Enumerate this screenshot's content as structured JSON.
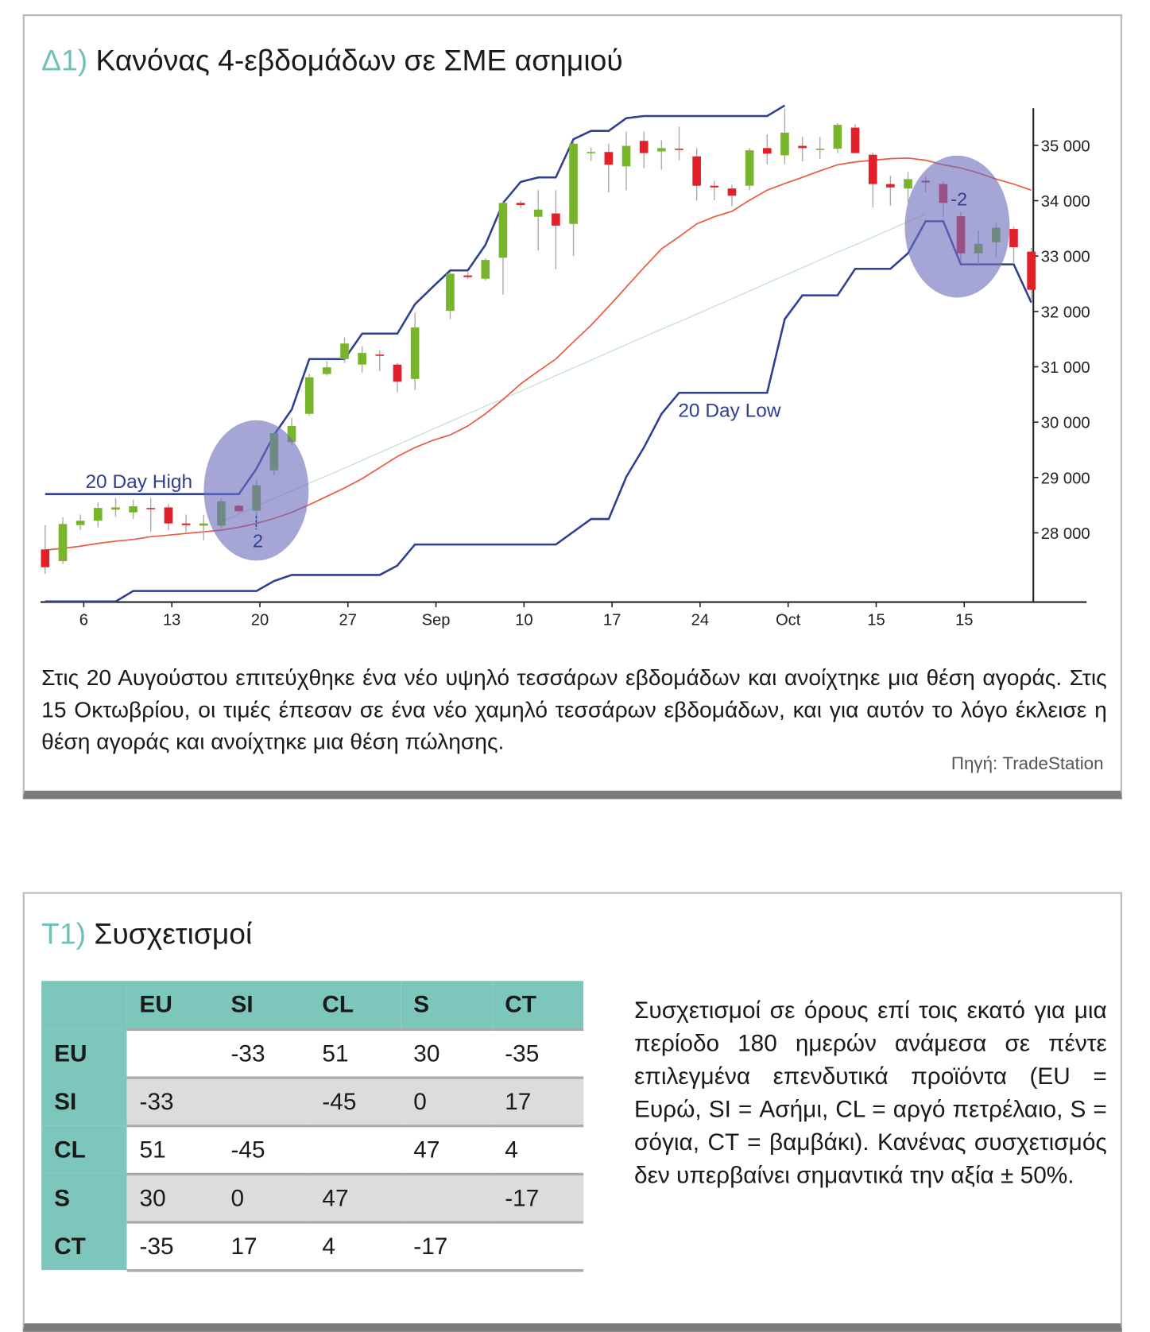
{
  "chart_data": {
    "type": "candlestick",
    "title_prefix": "Δ1)",
    "title": "Κανόνας 4-εβδομάδων σε ΣΜΕ ασημιού",
    "categories": [
      null,
      null,
      "6",
      null,
      null,
      null,
      null,
      "13",
      null,
      null,
      null,
      null,
      "20",
      null,
      null,
      null,
      null,
      "27",
      null,
      null,
      null,
      null,
      "Sep",
      null,
      null,
      null,
      null,
      "10",
      null,
      null,
      null,
      null,
      "17",
      null,
      null,
      null,
      null,
      "24",
      null,
      null,
      null,
      null,
      "Oct",
      null,
      null,
      null,
      null,
      "15",
      null,
      null,
      null,
      null,
      "15",
      null,
      null,
      null,
      null
    ],
    "open": [
      27700,
      27490,
      28140,
      28220,
      28420,
      28370,
      28450,
      28460,
      28170,
      28130,
      28130,
      28490,
      28400,
      29130,
      29640,
      30150,
      30870,
      31140,
      31040,
      31220,
      31040,
      30780,
      null,
      32010,
      32650,
      32590,
      32970,
      33960,
      33710,
      33770,
      33580,
      34860,
      34880,
      34620,
      35080,
      34890,
      34940,
      34800,
      34270,
      34220,
      34270,
      34950,
      34820,
      34990,
      34920,
      34940,
      35320,
      34830,
      34300,
      34220,
      34360,
      34300,
      33720,
      33050,
      33250,
      33490,
      33080
    ],
    "high": [
      28140,
      28280,
      28330,
      28550,
      28630,
      28600,
      28630,
      28520,
      28330,
      28330,
      28630,
      28510,
      28960,
      29820,
      30080,
      30870,
      31100,
      31530,
      31370,
      31300,
      31070,
      31980,
      null,
      32710,
      32710,
      32960,
      34000,
      34000,
      34190,
      34190,
      35080,
      34960,
      35030,
      35250,
      35250,
      35090,
      35340,
      34950,
      34360,
      34290,
      34950,
      35200,
      35660,
      35150,
      35150,
      35400,
      35380,
      34870,
      34450,
      34520,
      34460,
      34340,
      33800,
      33460,
      33600,
      33530,
      33150
    ],
    "low": [
      27260,
      27440,
      28050,
      28100,
      28290,
      28250,
      28020,
      28050,
      28020,
      27870,
      28080,
      28360,
      28170,
      29040,
      29580,
      30120,
      30840,
      31070,
      30890,
      30920,
      30540,
      30580,
      null,
      31860,
      32590,
      32560,
      32300,
      33870,
      33100,
      32760,
      33000,
      34720,
      34150,
      34190,
      34590,
      34560,
      34730,
      34000,
      34010,
      33900,
      34190,
      34660,
      34660,
      34710,
      34750,
      34860,
      34860,
      33880,
      33910,
      33970,
      34150,
      33710,
      32900,
      32850,
      32980,
      32860,
      32200
    ],
    "close": [
      27380,
      28160,
      28220,
      28450,
      28460,
      28480,
      28430,
      28170,
      28140,
      28170,
      28570,
      28390,
      28860,
      29800,
      29930,
      30810,
      30990,
      31420,
      31250,
      31210,
      30730,
      31710,
      null,
      32680,
      32620,
      32930,
      33960,
      33920,
      33840,
      33550,
      35030,
      34880,
      34650,
      34990,
      34860,
      34950,
      34920,
      34270,
      34240,
      34090,
      34910,
      34850,
      35230,
      34950,
      34940,
      35370,
      34860,
      34300,
      34240,
      34390,
      34330,
      33960,
      33050,
      33220,
      33510,
      33160,
      32390
    ],
    "up_color": "#78b52c",
    "down_color": "#e3202a",
    "lines": [
      {
        "name": "20 Day High",
        "color": "#2e3f93",
        "values": [
          28700,
          28700,
          28700,
          28700,
          28700,
          28700,
          28700,
          28700,
          28700,
          28700,
          28700,
          28700,
          29160,
          29770,
          30230,
          31140,
          31140,
          31140,
          31600,
          31600,
          31600,
          32130,
          32440,
          32740,
          32740,
          33200,
          33960,
          34340,
          34420,
          34420,
          35110,
          35260,
          35260,
          35490,
          35530,
          35530,
          35530,
          35530,
          35530,
          35530,
          35530,
          35530,
          35720,
          null,
          null,
          null,
          null,
          null,
          null,
          null,
          null,
          null,
          null,
          null,
          null,
          null,
          null
        ]
      },
      {
        "name": "20 Day Low",
        "color": "#2e3f93",
        "values": [
          26760,
          26760,
          26760,
          26760,
          26760,
          26950,
          26950,
          26950,
          26950,
          26950,
          26950,
          26950,
          26950,
          27130,
          27240,
          27240,
          27240,
          27240,
          27240,
          27240,
          27410,
          27790,
          27790,
          27790,
          27790,
          27790,
          27790,
          27790,
          27790,
          27790,
          28020,
          28250,
          28250,
          29010,
          29540,
          30150,
          30530,
          30530,
          30530,
          30530,
          30530,
          30530,
          31860,
          32290,
          32290,
          32290,
          32770,
          32770,
          32770,
          33050,
          33630,
          33630,
          32850,
          32850,
          32850,
          32850,
          32160
        ]
      },
      {
        "color": "#ec5842",
        "values": [
          27690,
          27720,
          27760,
          27810,
          27850,
          27880,
          27930,
          27960,
          27990,
          28020,
          28050,
          28100,
          28170,
          28260,
          28370,
          28510,
          28660,
          28810,
          28980,
          29180,
          29380,
          29540,
          29670,
          29770,
          29930,
          30150,
          30410,
          30690,
          30920,
          31140,
          31450,
          31750,
          32090,
          32440,
          32790,
          33130,
          33350,
          33580,
          33710,
          33810,
          34010,
          34190,
          34310,
          34420,
          34540,
          34650,
          34700,
          34730,
          34760,
          34770,
          34730,
          34650,
          34590,
          34500,
          34390,
          34300,
          34190
        ]
      },
      {
        "color": "#c3e3cc",
        "values": [
          null,
          null,
          null,
          null,
          null,
          null,
          null,
          null,
          null,
          null,
          28200,
          28340,
          28480,
          28620,
          28760,
          28900,
          29030,
          29170,
          29310,
          29450,
          29590,
          29730,
          29870,
          30010,
          30150,
          30290,
          30420,
          30560,
          30700,
          30840,
          30980,
          31120,
          31260,
          31400,
          31540,
          31680,
          31810,
          31950,
          32090,
          32230,
          32370,
          32510,
          32650,
          32790,
          32930,
          33070,
          33200,
          33340,
          33480,
          33620,
          33760,
          null,
          null,
          null,
          null,
          null,
          null
        ]
      }
    ],
    "annotations": [
      {
        "text": "2"
      },
      {
        "text": "-2"
      }
    ],
    "highlight_color": "#6e6ebd",
    "ylim": [
      26750,
      35670
    ],
    "yticks": [
      {
        "value": 28000,
        "label": "28 000"
      },
      {
        "value": 29000,
        "label": "29 000"
      },
      {
        "value": 30000,
        "label": "30 000"
      },
      {
        "value": 31000,
        "label": "31 000"
      },
      {
        "value": 32000,
        "label": "32 000"
      },
      {
        "value": 33000,
        "label": "33 000"
      },
      {
        "value": 34000,
        "label": "34 000"
      },
      {
        "value": 35000,
        "label": "35 000"
      }
    ]
  },
  "caption": "Στις 20 Αυγούστου επιτεύχθηκε ένα νέο υψηλό τεσσάρων εβδομάδων και ανοίχτηκε μια θέση αγοράς. Στις 15 Οκτωβρίου, οι τιμές έπεσαν σε ένα νέο χαμηλό τεσσάρων εβδομάδων, και για αυτόν το λόγο έκλεισε η θέση αγοράς και ανοίχτηκε μια θέση πώλησης.",
  "source": "Πηγή: TradeStation",
  "table_section": {
    "title_prefix": "Τ1)",
    "title": "Συσχετισμοί",
    "columns": [
      "EU",
      "SI",
      "CL",
      "S",
      "CT"
    ],
    "rows": [
      {
        "label": "EU",
        "values": [
          null,
          -33,
          51,
          30,
          -35
        ]
      },
      {
        "label": "SI",
        "values": [
          -33,
          null,
          -45,
          0,
          17
        ]
      },
      {
        "label": "CL",
        "values": [
          51,
          -45,
          null,
          47,
          4
        ]
      },
      {
        "label": "S",
        "values": [
          30,
          0,
          47,
          null,
          -17
        ]
      },
      {
        "label": "CT",
        "values": [
          -35,
          17,
          4,
          -17,
          null
        ]
      }
    ],
    "note": "Συσχετισμοί σε όρους επί τοις εκατό για μια περίοδο 180 ημερών ανάμεσα σε πέντε επιλεγμένα επενδυτικά προϊόντα (EU = Ευρώ, SI = Ασήμι, CL = αργό πετρέλαιο, S = σόγια, CT = βαμβάκι). Κανένας συσχετισμός δεν υπερβαίνει σημαντικά την αξία ± 50%."
  }
}
